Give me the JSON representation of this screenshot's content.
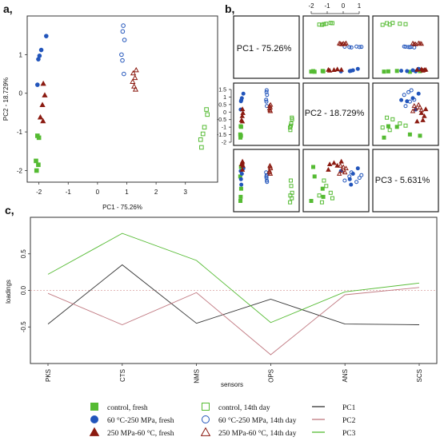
{
  "panel_labels": {
    "a": "a,",
    "b": "b,",
    "c": "c,"
  },
  "legend": {
    "items": [
      {
        "label": "control, fresh",
        "color": "#55bb33",
        "shape": "square-filled"
      },
      {
        "label": "60 °C-250 MPa, fresh",
        "color": "#2255bb",
        "shape": "circle-filled"
      },
      {
        "label": "250 MPa-60 °C, fresh",
        "color": "#8b1a10",
        "shape": "triangle-filled"
      },
      {
        "label": "control, 14th day",
        "color": "#55bb33",
        "shape": "square-open"
      },
      {
        "label": "60 °C-250 MPa, 14th day",
        "color": "#2255bb",
        "shape": "circle-open"
      },
      {
        "label": "250 MPa-60 °C, 14th day",
        "color": "#8b1a10",
        "shape": "triangle-open"
      },
      {
        "label": "PC1",
        "color": "#333333",
        "shape": "line"
      },
      {
        "label": "PC2",
        "color": "#c07880",
        "shape": "line"
      },
      {
        "label": "PC3",
        "color": "#55bb33",
        "shape": "line"
      }
    ]
  },
  "chart_data": [
    {
      "type": "scatter",
      "panel": "a",
      "title": "",
      "xlabel": "PC1 - 75.26%",
      "ylabel": "PC2 - 18.729%",
      "xlim": [
        -2.4,
        4.1
      ],
      "ylim": [
        -2.3,
        2.0
      ],
      "xticks": [
        -2,
        -1,
        0,
        1,
        2,
        3
      ],
      "yticks": [
        -2,
        -1,
        0,
        1
      ],
      "series": [
        {
          "name": "control, fresh",
          "points": [
            [
              -2.05,
              -1.1
            ],
            [
              -2.0,
              -1.15
            ],
            [
              -2.1,
              -1.75
            ],
            [
              -2.02,
              -1.85
            ],
            [
              -2.08,
              -2.0
            ]
          ]
        },
        {
          "name": "60 °C-250 MPa, fresh",
          "points": [
            [
              -1.75,
              1.48
            ],
            [
              -1.92,
              1.12
            ],
            [
              -2.02,
              0.88
            ],
            [
              -1.98,
              0.97
            ],
            [
              -2.05,
              0.22
            ]
          ]
        },
        {
          "name": "250 MPa-60 °C, fresh",
          "points": [
            [
              -1.85,
              0.25
            ],
            [
              -1.8,
              -0.05
            ],
            [
              -1.88,
              -0.3
            ],
            [
              -1.95,
              -0.62
            ],
            [
              -1.86,
              -0.72
            ]
          ]
        },
        {
          "name": "control, 14th day",
          "points": [
            [
              3.72,
              -0.42
            ],
            [
              3.75,
              -0.55
            ],
            [
              3.65,
              -0.88
            ],
            [
              3.6,
              -1.05
            ],
            [
              3.52,
              -1.2
            ],
            [
              3.55,
              -1.4
            ]
          ]
        },
        {
          "name": "60 °C-250 MPa, 14th day",
          "points": [
            [
              0.88,
              1.75
            ],
            [
              0.86,
              1.6
            ],
            [
              0.92,
              1.38
            ],
            [
              0.82,
              1.0
            ],
            [
              0.85,
              0.85
            ],
            [
              0.9,
              0.5
            ]
          ]
        },
        {
          "name": "250 MPa-60 °C, 14th day",
          "points": [
            [
              1.32,
              0.6
            ],
            [
              1.22,
              0.52
            ],
            [
              1.28,
              0.4
            ],
            [
              1.2,
              0.3
            ],
            [
              1.25,
              0.18
            ],
            [
              1.3,
              0.1
            ]
          ]
        }
      ]
    },
    {
      "type": "scatter",
      "panel": "b",
      "title": "",
      "diagonal_labels": [
        "PC1 - 75.26%",
        "PC2 - 18.729%",
        "PC3 - 5.631%"
      ],
      "top_axis_ticks": [
        -2,
        -1,
        0,
        1
      ],
      "left_axis_ticks": [
        1.5,
        1,
        0.5,
        0,
        -0.5,
        -1,
        -1.5,
        -2
      ]
    },
    {
      "type": "line",
      "panel": "c",
      "title": "",
      "xlabel": "sensors",
      "ylabel": "loadings",
      "categories": [
        "PKS",
        "CTS",
        "NMS",
        "OPS",
        "ANS",
        "SCS"
      ],
      "ylim": [
        -1.0,
        1.0
      ],
      "yticks": [
        -0.5,
        0.0,
        0.5
      ],
      "reference_line": 0.0,
      "series": [
        {
          "name": "PC1",
          "values": [
            -0.46,
            0.35,
            -0.45,
            -0.12,
            -0.46,
            -0.47
          ]
        },
        {
          "name": "PC2",
          "values": [
            -0.04,
            -0.47,
            -0.03,
            -0.88,
            -0.06,
            0.04
          ]
        },
        {
          "name": "PC3",
          "values": [
            0.22,
            0.78,
            0.41,
            -0.44,
            -0.02,
            0.1
          ]
        }
      ]
    }
  ]
}
